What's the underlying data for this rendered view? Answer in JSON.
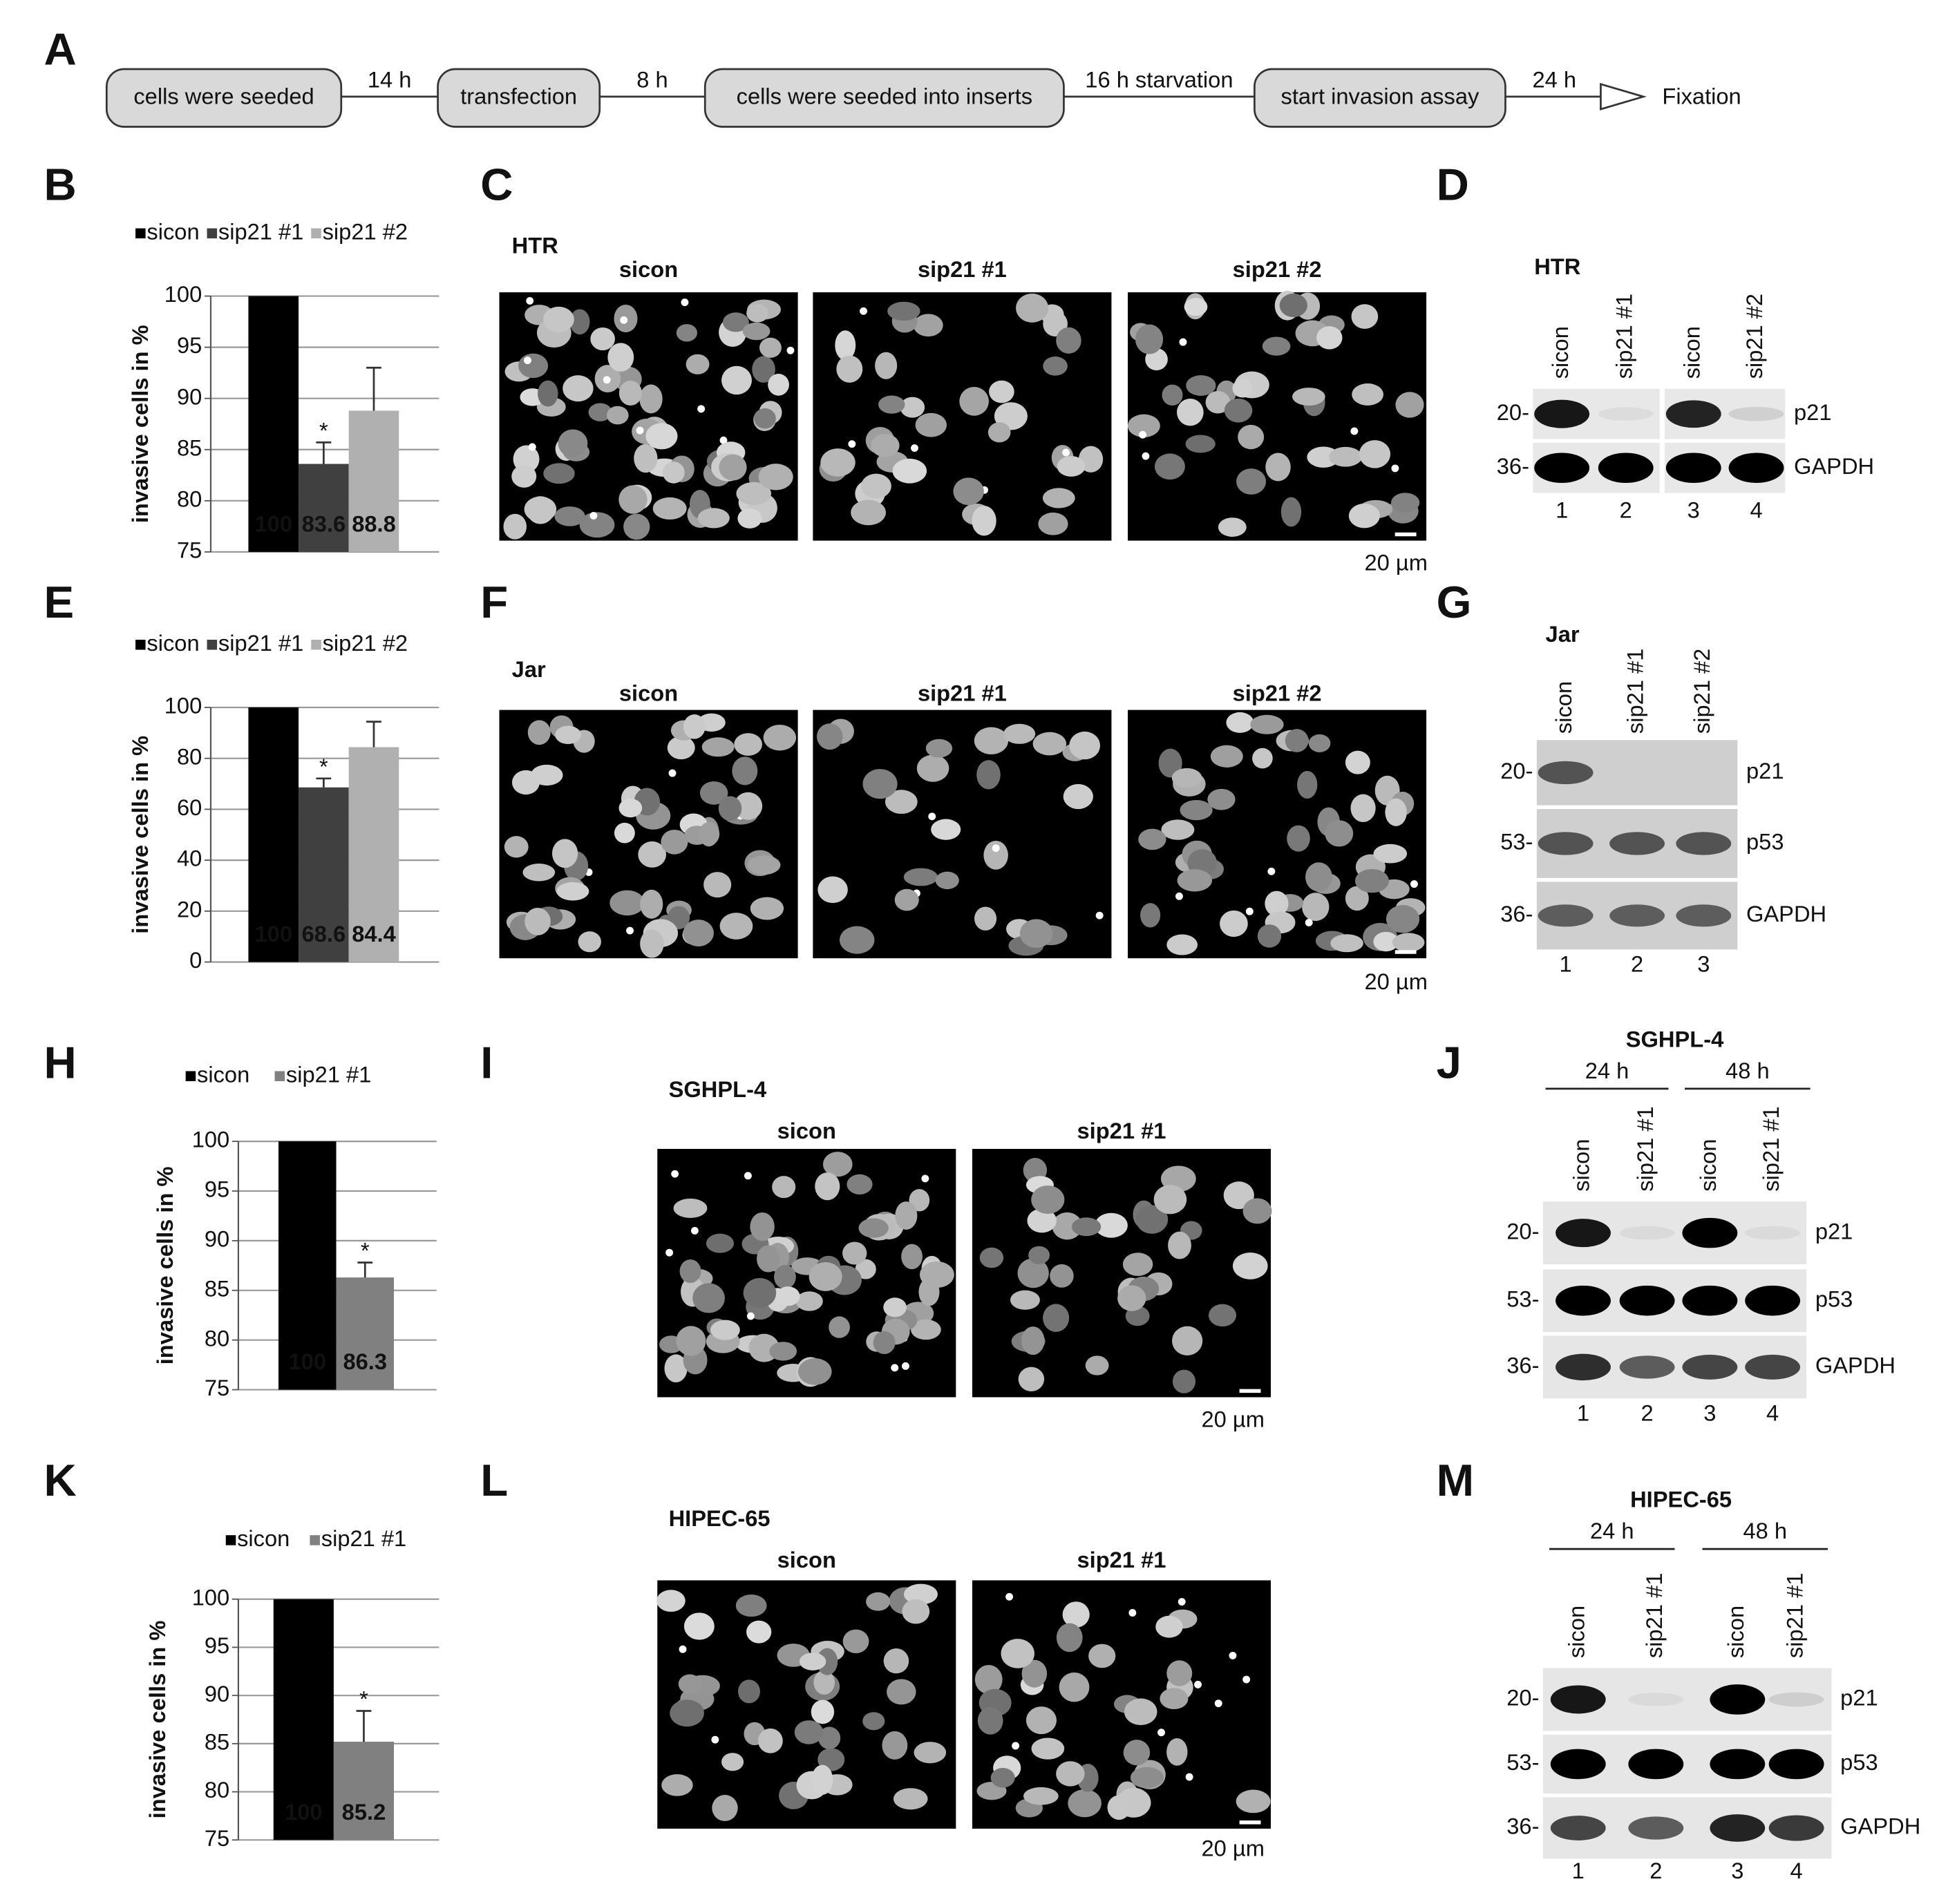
{
  "flow": {
    "panel": "A",
    "steps": [
      "cells were seeded",
      "transfection",
      "cells were seeded into inserts",
      "start invasion assay"
    ],
    "arrows": [
      "14 h",
      "8 h",
      "16 h starvation",
      "24 h"
    ],
    "end": "Fixation"
  },
  "chart_data": [
    {
      "type": "bar",
      "panel": "B",
      "ylabel": "invasive cells in %",
      "ylim": [
        75,
        100
      ],
      "yticks": [
        75,
        80,
        85,
        90,
        95,
        100
      ],
      "grid": true,
      "series": [
        {
          "name": "sicon",
          "color": "#000000",
          "values": [
            100
          ],
          "value_labels": [
            "100"
          ]
        },
        {
          "name": "sip21 #1",
          "color": "#404040",
          "values": [
            83.6
          ],
          "value_labels": [
            "83.6"
          ],
          "errors": [
            2.1
          ],
          "annotation": "*"
        },
        {
          "name": "sip21 #2",
          "color": "#b0b0b0",
          "values": [
            88.8
          ],
          "value_labels": [
            "88.8"
          ],
          "errors": [
            4.2
          ]
        }
      ]
    },
    {
      "type": "bar",
      "panel": "E",
      "ylabel": "invasive cells in %",
      "ylim": [
        0,
        100
      ],
      "yticks": [
        0,
        20,
        40,
        60,
        80,
        100
      ],
      "grid": true,
      "series": [
        {
          "name": "sicon",
          "color": "#000000",
          "values": [
            100
          ],
          "value_labels": [
            "100"
          ]
        },
        {
          "name": "sip21 #1",
          "color": "#404040",
          "values": [
            68.6
          ],
          "value_labels": [
            "68.6"
          ],
          "errors": [
            3.5
          ],
          "annotation": "*"
        },
        {
          "name": "sip21 #2",
          "color": "#b0b0b0",
          "values": [
            84.4
          ],
          "value_labels": [
            "84.4"
          ],
          "errors": [
            10
          ]
        }
      ]
    },
    {
      "type": "bar",
      "panel": "H",
      "ylabel": "invasive cells in %",
      "ylim": [
        75,
        100
      ],
      "yticks": [
        75,
        80,
        85,
        90,
        95,
        100
      ],
      "grid": true,
      "series": [
        {
          "name": "sicon",
          "color": "#000000",
          "values": [
            100
          ],
          "value_labels": [
            "100"
          ]
        },
        {
          "name": "sip21 #1",
          "color": "#808080",
          "values": [
            86.3
          ],
          "value_labels": [
            "86.3"
          ],
          "errors": [
            1.5
          ],
          "annotation": "*"
        }
      ]
    },
    {
      "type": "bar",
      "panel": "K",
      "ylabel": "invasive cells in %",
      "ylim": [
        75,
        100
      ],
      "yticks": [
        75,
        80,
        85,
        90,
        95,
        100
      ],
      "grid": true,
      "series": [
        {
          "name": "sicon",
          "color": "#000000",
          "values": [
            100
          ],
          "value_labels": [
            "100"
          ]
        },
        {
          "name": "sip21 #1",
          "color": "#808080",
          "values": [
            85.2
          ],
          "value_labels": [
            "85.2"
          ],
          "errors": [
            3.2
          ],
          "annotation": "*"
        }
      ]
    }
  ],
  "microscopy": [
    {
      "panel": "C",
      "cell_line": "HTR",
      "columns": [
        "sicon",
        "sip21 #1",
        "sip21 #2"
      ],
      "scale": "20 µm"
    },
    {
      "panel": "F",
      "cell_line": "Jar",
      "columns": [
        "sicon",
        "sip21 #1",
        "sip21 #2"
      ],
      "scale": "20 µm"
    },
    {
      "panel": "I",
      "cell_line": "SGHPL-4",
      "columns": [
        "sicon",
        "sip21 #1"
      ],
      "scale": "20 µm"
    },
    {
      "panel": "L",
      "cell_line": "HIPEC-65",
      "columns": [
        "sicon",
        "sip21 #1"
      ],
      "scale": "20 µm"
    }
  ],
  "blots": [
    {
      "panel": "D",
      "cell_line": "HTR",
      "lanes": [
        "sicon",
        "sip21 #1",
        "sicon",
        "sip21 #2"
      ],
      "lane_numbers": [
        "1",
        "2",
        "3",
        "4"
      ],
      "rows": [
        {
          "marker": "20-",
          "protein": "p21"
        },
        {
          "marker": "36-",
          "protein": "GAPDH"
        }
      ]
    },
    {
      "panel": "G",
      "cell_line": "Jar",
      "lanes": [
        "sicon",
        "sip21 #1",
        "sip21 #2"
      ],
      "lane_numbers": [
        "1",
        "2",
        "3"
      ],
      "rows": [
        {
          "marker": "20-",
          "protein": "p21"
        },
        {
          "marker": "53-",
          "protein": "p53"
        },
        {
          "marker": "36-",
          "protein": "GAPDH"
        }
      ]
    },
    {
      "panel": "J",
      "cell_line": "SGHPL-4",
      "times": [
        "24 h",
        "48 h"
      ],
      "lanes": [
        "sicon",
        "sip21 #1",
        "sicon",
        "sip21 #1"
      ],
      "lane_numbers": [
        "1",
        "2",
        "3",
        "4"
      ],
      "rows": [
        {
          "marker": "20-",
          "protein": "p21"
        },
        {
          "marker": "53-",
          "protein": "p53"
        },
        {
          "marker": "36-",
          "protein": "GAPDH"
        }
      ]
    },
    {
      "panel": "M",
      "cell_line": "HIPEC-65",
      "times": [
        "24 h",
        "48 h"
      ],
      "lanes": [
        "sicon",
        "sip21 #1",
        "sicon",
        "sip21 #1"
      ],
      "lane_numbers": [
        "1",
        "2",
        "3",
        "4"
      ],
      "rows": [
        {
          "marker": "20-",
          "protein": "p21"
        },
        {
          "marker": "53-",
          "protein": "p53"
        },
        {
          "marker": "36-",
          "protein": "GAPDH"
        }
      ]
    }
  ]
}
